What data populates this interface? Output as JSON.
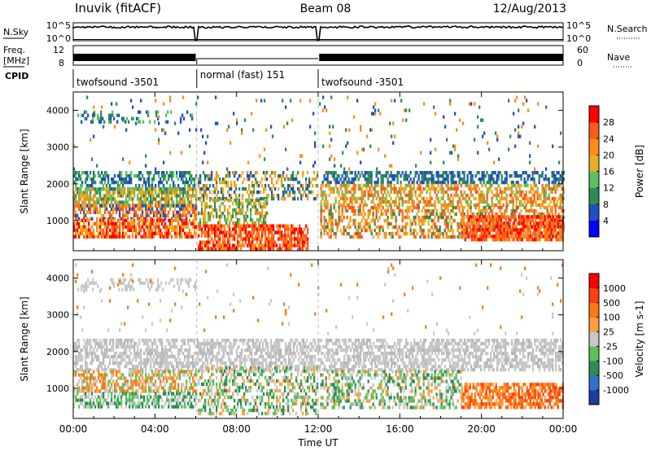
{
  "header": {
    "station": "Inuvik (fitACF)",
    "beam": "Beam 08",
    "date": "12/Aug/2013"
  },
  "top_panels": {
    "nsky_label": "N.Sky",
    "nsky_ticks": [
      "10^5",
      "10^0"
    ],
    "nsearch_label": "N.Search",
    "nsearch_ticks": [
      "10^5",
      "10^0"
    ],
    "freq_label": "Freq.",
    "freq_unit": "[MHz]",
    "freq_ticks": [
      "12",
      "8"
    ],
    "nave_label": "Nave",
    "nave_ticks": [
      "60",
      "0"
    ],
    "cpid_label": "CPID",
    "cpid_segments": [
      {
        "label": "twofsound -3501",
        "start_h": 0,
        "end_h": 6.05
      },
      {
        "label": "normal (fast) 151",
        "start_h": 6.05,
        "end_h": 12.0
      },
      {
        "label": "twofsound -3501",
        "start_h": 12.0,
        "end_h": 24
      }
    ]
  },
  "chart_data": [
    {
      "type": "heatmap",
      "title": "",
      "xlabel": "Time UT",
      "ylabel": "Slant Range [km]",
      "x_ticks": [
        "00:00",
        "04:00",
        "08:00",
        "12:00",
        "16:00",
        "20:00",
        "00:00"
      ],
      "xlim": [
        0,
        24
      ],
      "y_ticks": [
        "1000",
        "2000",
        "3000",
        "4000"
      ],
      "ylim": [
        180,
        4500
      ],
      "colorbar": {
        "label": "Power [dB]",
        "ticks": [
          "4",
          "8",
          "12",
          "16",
          "20",
          "24",
          "28"
        ],
        "colors": [
          "#0000ff",
          "#2050c0",
          "#2e8b57",
          "#5cc05c",
          "#e8b020",
          "#ff8c1a",
          "#ff5a1a",
          "#ff0000"
        ]
      },
      "regions": [
        {
          "t": [
            0.2,
            6.0
          ],
          "r": [
            3650,
            4000
          ],
          "colors": [
            "#2e8b57",
            "#5cc05c",
            "#2050c0"
          ],
          "d": 0.25
        },
        {
          "t": [
            0.0,
            6.0
          ],
          "r": [
            1900,
            2350
          ],
          "colors": [
            "#2050c0",
            "#2e8b57",
            "#5cc05c"
          ],
          "d": 0.55
        },
        {
          "t": [
            0.0,
            6.0
          ],
          "r": [
            1450,
            1900
          ],
          "colors": [
            "#5cc05c",
            "#e8b020",
            "#ff8c1a",
            "#2e8b57"
          ],
          "d": 0.7
        },
        {
          "t": [
            0.0,
            6.0
          ],
          "r": [
            1050,
            1450
          ],
          "colors": [
            "#ff5a1a",
            "#ff8c1a",
            "#e8b020",
            "#2050c0"
          ],
          "d": 0.65
        },
        {
          "t": [
            0.0,
            6.0
          ],
          "r": [
            550,
            1050
          ],
          "colors": [
            "#ff5a1a",
            "#ff0000",
            "#ff8c1a",
            "#e8b020"
          ],
          "d": 0.7
        },
        {
          "t": [
            6.1,
            12.0
          ],
          "r": [
            1600,
            2350
          ],
          "colors": [
            "#2050c0",
            "#2e8b57",
            "#ff8c1a",
            "#e8b020"
          ],
          "d": 0.45
        },
        {
          "t": [
            6.1,
            9.5
          ],
          "r": [
            900,
            1600
          ],
          "colors": [
            "#5cc05c",
            "#2e8b57",
            "#e8b020",
            "#ff8c1a"
          ],
          "d": 0.5
        },
        {
          "t": [
            6.1,
            11.5
          ],
          "r": [
            200,
            900
          ],
          "colors": [
            "#ff0000",
            "#ff5a1a",
            "#ff8c1a"
          ],
          "d": 0.75
        },
        {
          "t": [
            12.1,
            24.0
          ],
          "r": [
            2000,
            2350
          ],
          "colors": [
            "#2050c0",
            "#2e8b57"
          ],
          "d": 0.55
        },
        {
          "t": [
            12.1,
            24.0
          ],
          "r": [
            1400,
            2000
          ],
          "colors": [
            "#ff8c1a",
            "#ff5a1a",
            "#e8b020",
            "#5cc05c"
          ],
          "d": 0.55
        },
        {
          "t": [
            12.1,
            24.0
          ],
          "r": [
            600,
            1400
          ],
          "colors": [
            "#ff5a1a",
            "#ff8c1a",
            "#2e8b57",
            "#e8b020"
          ],
          "d": 0.5
        },
        {
          "t": [
            19.0,
            24.0
          ],
          "r": [
            500,
            1150
          ],
          "colors": [
            "#ff0000",
            "#ff5a1a",
            "#ff8c1a"
          ],
          "d": 0.75
        },
        {
          "t": [
            0.0,
            24.0
          ],
          "r": [
            2400,
            4400
          ],
          "colors": [
            "#2050c0",
            "#2e8b57",
            "#ff8c1a"
          ],
          "d": 0.03
        }
      ]
    },
    {
      "type": "heatmap",
      "title": "",
      "xlabel": "Time UT",
      "ylabel": "Slant Range [km]",
      "x_ticks": [
        "00:00",
        "04:00",
        "08:00",
        "12:00",
        "16:00",
        "20:00",
        "00:00"
      ],
      "xlim": [
        0,
        24
      ],
      "y_ticks": [
        "1000",
        "2000",
        "3000",
        "4000"
      ],
      "ylim": [
        180,
        4500
      ],
      "colorbar": {
        "label": "Velocity [m s-1]",
        "ticks": [
          "1000",
          "500",
          "100",
          "25",
          "-25",
          "-100",
          "-500",
          "-1000"
        ],
        "colors": [
          "#1e3c9c",
          "#3070d0",
          "#2e8b57",
          "#5cc05c",
          "#c8c8c8",
          "#ffa040",
          "#ff7a10",
          "#ff4010",
          "#ff0000"
        ]
      },
      "regions": [
        {
          "t": [
            0.2,
            6.0
          ],
          "r": [
            3700,
            4000
          ],
          "colors": [
            "#c8c8c8"
          ],
          "d": 0.3
        },
        {
          "t": [
            0.0,
            24.0
          ],
          "r": [
            1500,
            2350
          ],
          "colors": [
            "#c8c8c8",
            "#c8c8c8",
            "#b8b8b8"
          ],
          "d": 0.6
        },
        {
          "t": [
            0.0,
            6.0
          ],
          "r": [
            900,
            1500
          ],
          "colors": [
            "#ffa040",
            "#ff7a10",
            "#5cc05c",
            "#c8c8c8"
          ],
          "d": 0.6
        },
        {
          "t": [
            0.0,
            6.0
          ],
          "r": [
            500,
            900
          ],
          "colors": [
            "#5cc05c",
            "#2e8b57",
            "#c8c8c8"
          ],
          "d": 0.6
        },
        {
          "t": [
            6.1,
            12.0
          ],
          "r": [
            300,
            1600
          ],
          "colors": [
            "#5cc05c",
            "#c8c8c8",
            "#2e8b57",
            "#ffa040"
          ],
          "d": 0.45
        },
        {
          "t": [
            12.1,
            19.0
          ],
          "r": [
            500,
            1500
          ],
          "colors": [
            "#c8c8c8",
            "#5cc05c",
            "#2e8b57",
            "#ffa040"
          ],
          "d": 0.45
        },
        {
          "t": [
            19.0,
            24.0
          ],
          "r": [
            500,
            1150
          ],
          "colors": [
            "#ff7a10",
            "#ff4010",
            "#ffa040"
          ],
          "d": 0.7
        },
        {
          "t": [
            0.0,
            24.0
          ],
          "r": [
            2500,
            4400
          ],
          "colors": [
            "#c8c8c8",
            "#ff7a10"
          ],
          "d": 0.02
        }
      ]
    }
  ]
}
